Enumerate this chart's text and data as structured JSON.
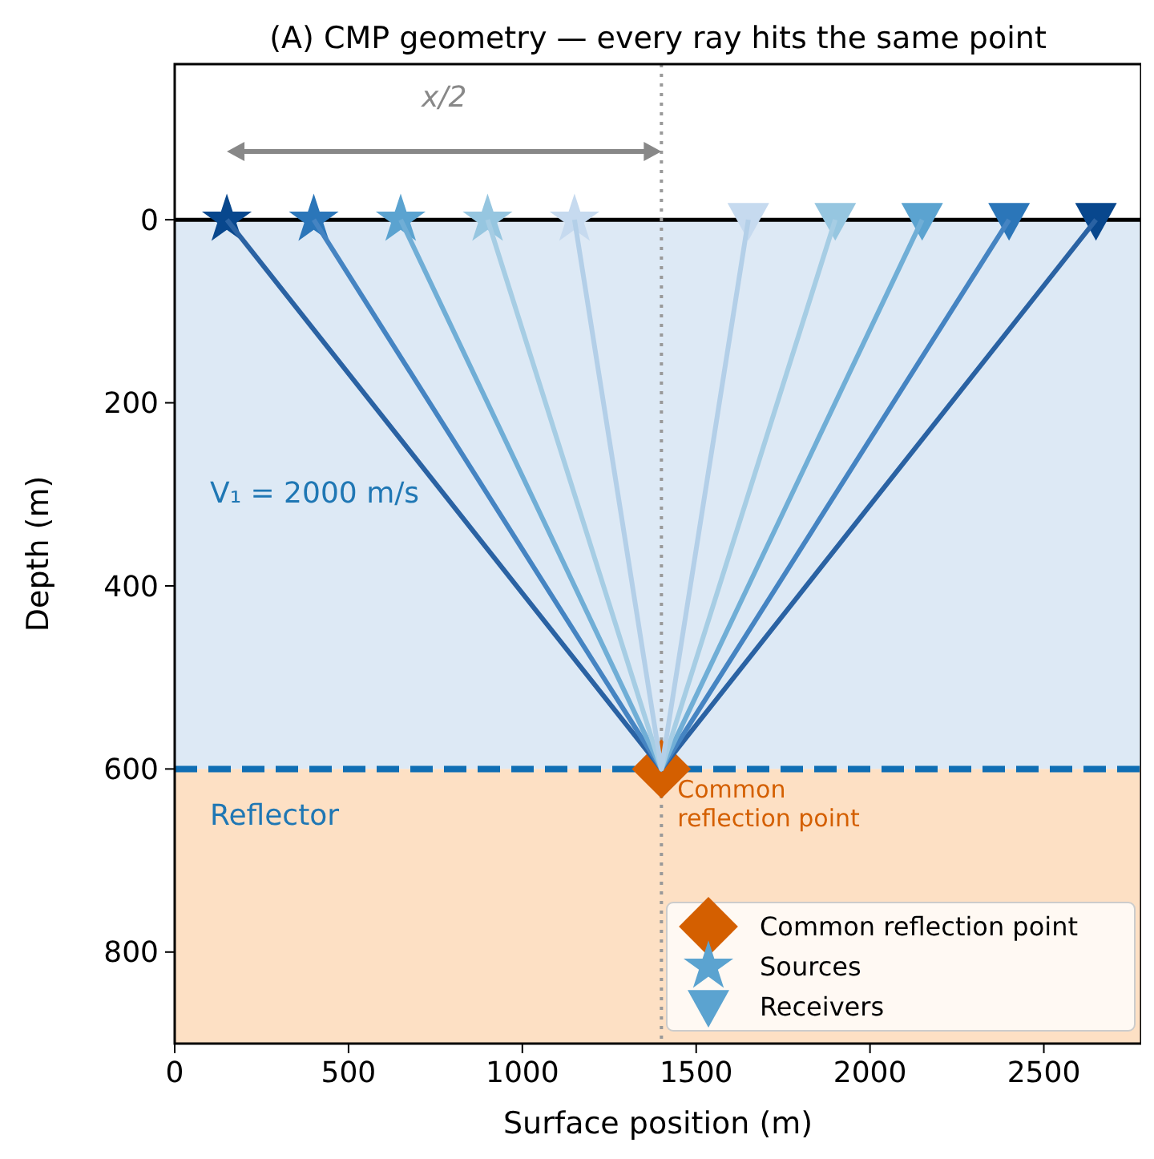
{
  "chart_data": {
    "type": "line",
    "title": "(A) CMP geometry — every ray hits the same point",
    "xlabel": "Surface position (m)",
    "ylabel": "Depth (m)",
    "xlim": [
      0,
      2780
    ],
    "xticks": [
      0,
      500,
      1000,
      1500,
      2000,
      2500
    ],
    "ylim": [
      900,
      -170
    ],
    "yticks": [
      0,
      200,
      400,
      600,
      800
    ],
    "grid": false,
    "legend": "bottom right",
    "bands": [
      {
        "axis": "y",
        "from": 0,
        "to": 600,
        "color": "#dde9f5"
      },
      {
        "axis": "y",
        "from": 600,
        "to": 900,
        "color": "#fde0c4"
      }
    ],
    "ref_lines": [
      {
        "axis": "y",
        "value": 0,
        "color": "#000000",
        "line_style": "solid"
      },
      {
        "axis": "y",
        "value": 600,
        "color": "#0f6eb4",
        "line_style": "dashed"
      },
      {
        "axis": "x",
        "value": 1400,
        "color": "#999999",
        "line_style": "dotted"
      }
    ],
    "annotations": [
      "x/2",
      "V₁ = 2000 m/s",
      "Reflector",
      {
        "text": "Common\nreflection point",
        "x": 1400,
        "y": 600
      }
    ],
    "series": [
      {
        "color": "#2a62a3",
        "x": [
          150,
          1400,
          2650
        ],
        "values": [
          0,
          600,
          0
        ],
        "marker": "none"
      },
      {
        "color": "#4584c2",
        "x": [
          400,
          1400,
          2400
        ],
        "values": [
          0,
          600,
          0
        ],
        "marker": "none"
      },
      {
        "color": "#70aed6",
        "x": [
          650,
          1400,
          2150
        ],
        "values": [
          0,
          600,
          0
        ],
        "marker": "none"
      },
      {
        "color": "#a6cde4",
        "x": [
          900,
          1400,
          1900
        ],
        "values": [
          0,
          600,
          0
        ],
        "marker": "none"
      },
      {
        "color": "#b3cfe8",
        "x": [
          1150,
          1400,
          1650
        ],
        "values": [
          0,
          600,
          0
        ],
        "marker": "none"
      },
      {
        "type": "scatter",
        "name": "Common reflection point",
        "color": "#d45f00",
        "x": [
          1400
        ],
        "values": [
          600
        ],
        "marker": "diamond"
      },
      {
        "type": "scatter",
        "name": "Sources",
        "color": "#5ba3d0",
        "x": [
          150,
          400,
          650,
          900,
          1150
        ],
        "values": [
          0,
          0,
          0,
          0,
          0
        ],
        "colors": [
          "#08478d",
          "#2b76b9",
          "#5ba3d0",
          "#96c6e0",
          "#c6daef"
        ],
        "marker": "star"
      },
      {
        "type": "scatter",
        "name": "Receivers",
        "color": "#5ba3d0",
        "x": [
          1650,
          1900,
          2150,
          2400,
          2650
        ],
        "values": [
          0,
          0,
          0,
          0,
          0
        ],
        "colors": [
          "#c6daef",
          "#96c6e0",
          "#5ba3d0",
          "#2b76b9",
          "#08478d"
        ],
        "marker": "triangle"
      }
    ]
  }
}
